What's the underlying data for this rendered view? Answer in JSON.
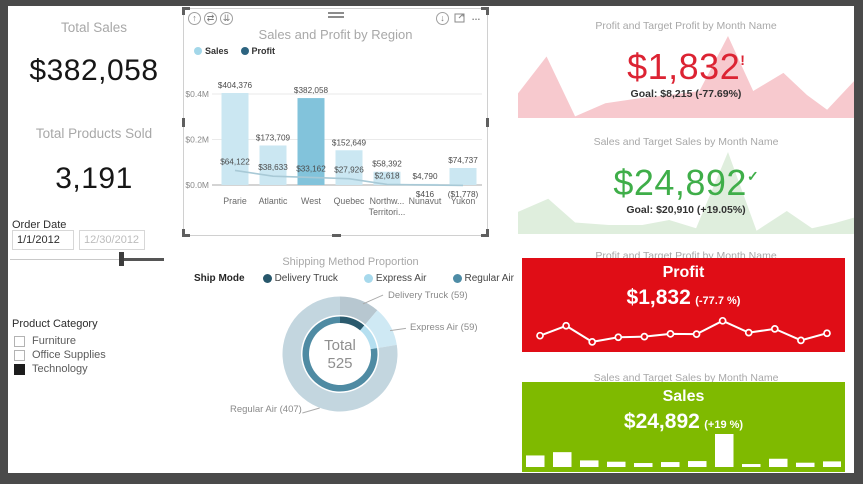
{
  "colors": {
    "frame": "#4a4a4a",
    "title_gray": "#a8a8a8",
    "kpi_red_text": "#dc2333",
    "kpi_green_text": "#3fae49",
    "pink_area": "#f7c9ce",
    "green_area": "#dfeedd",
    "card_profit_bg": "#e00d16",
    "card_sales_bg": "#7fba00",
    "bar_light": "#cbe7f2",
    "bar_highlight": "#82c3db",
    "profit_line": "#a8c9d6"
  },
  "left_panel": {
    "total_sales_label": "Total Sales",
    "total_sales_value": "$382,058",
    "total_products_label": "Total Products Sold",
    "total_products_value": "3,191",
    "order_date": {
      "label": "Order Date",
      "start_value": "1/1/2012",
      "end_value": "12/30/2012"
    },
    "product_category": {
      "label": "Product Category",
      "options": [
        {
          "label": "Furniture",
          "checked": false
        },
        {
          "label": "Office Supplies",
          "checked": false
        },
        {
          "label": "Technology",
          "checked": true
        }
      ]
    }
  },
  "region_visual": {
    "title": "Sales and Profit by Region",
    "legend": [
      {
        "label": "Sales",
        "color": "#a3d7e9"
      },
      {
        "label": "Profit",
        "color": "#2d6480"
      }
    ],
    "header_icons": {
      "drill_up": "↑",
      "drill_swap": "⇄",
      "expand_all": "⇊",
      "drill_down": "↓",
      "more_options": "…"
    }
  },
  "donut_visual": {
    "title": "Shipping Method Proportion",
    "legend_title": "Ship Mode",
    "legend": [
      {
        "label": "Delivery Truck",
        "color": "#27576b"
      },
      {
        "label": "Express Air",
        "color": "#a7d9ec"
      },
      {
        "label": "Regular Air",
        "color": "#4e8ca6"
      }
    ],
    "center_label": "Total",
    "center_value": "525",
    "callouts": {
      "delivery_truck": "Delivery Truck (59)",
      "express_air": "Express Air (59)",
      "regular_air": "Regular Air (407)"
    }
  },
  "kpi_profit": {
    "title": "Profit and Target Profit by Month Name",
    "value": "$1,832",
    "indicator": "!",
    "goal": "Goal: $8,215 (-77.69%)"
  },
  "kpi_sales": {
    "title": "Sales and Target Sales by Month Name",
    "value": "$24,892",
    "indicator": "✓",
    "goal": "Goal: $20,910 (+19.05%)"
  },
  "card_profit": {
    "title": "Profit and Target Profit by Month Name",
    "heading": "Profit",
    "value": "$1,832",
    "delta": "(-77.7 %)"
  },
  "card_sales": {
    "title": "Sales and Target Sales by Month Name",
    "heading": "Sales",
    "value": "$24,892",
    "delta": "(+19 %)"
  },
  "chart_data": [
    {
      "id": "region",
      "type": "bar",
      "title": "Sales and Profit by Region",
      "categories": [
        "Prarie",
        "Atlantic",
        "West",
        "Quebec",
        "Northw...\nTerritori...",
        "Nunavut",
        "Yukon"
      ],
      "series": [
        {
          "name": "Sales",
          "type": "bar",
          "values": [
            404376,
            173709,
            382058,
            152649,
            58392,
            4790,
            74737
          ],
          "labels": [
            "$404,376",
            "$173,709",
            "$382,058",
            "$152,649",
            "$58,392",
            "$4,790",
            "$74,737"
          ]
        },
        {
          "name": "Profit",
          "type": "line",
          "values": [
            64122,
            38633,
            33162,
            27926,
            2618,
            416,
            -1778
          ],
          "labels": [
            "$64,122",
            "$38,633",
            "$33,162",
            "$27,926",
            "$2,618",
            "$416",
            "($1,778)"
          ]
        }
      ],
      "y_ticks": [
        {
          "value": 0,
          "label": "$0.0M"
        },
        {
          "value": 200000,
          "label": "$0.2M"
        },
        {
          "value": 400000,
          "label": "$0.4M"
        }
      ],
      "ylim": [
        0,
        440000
      ],
      "highlight_index": 2,
      "grid": true,
      "legend_position": "top-left"
    },
    {
      "id": "shipping",
      "type": "pie",
      "title": "Shipping Method Proportion",
      "slices": [
        {
          "label": "Delivery Truck",
          "value": 59
        },
        {
          "label": "Express Air",
          "value": 59
        },
        {
          "label": "Regular Air",
          "value": 407
        }
      ],
      "total": 525,
      "outer_colors": [
        "#b7c7d0",
        "#cfe9f4",
        "#c3d6df"
      ],
      "inner_colors": [
        "#2b5a6d",
        "#b5dff0",
        "#4f8ba3"
      ]
    },
    {
      "id": "profit_area",
      "type": "area",
      "title": "Profit and Target Profit by Month Name",
      "points": [
        [
          0,
          0.3
        ],
        [
          0.085,
          0.75
        ],
        [
          0.17,
          0.02
        ],
        [
          0.26,
          0.18
        ],
        [
          0.36,
          0.24
        ],
        [
          0.45,
          0.28
        ],
        [
          0.54,
          0.33
        ],
        [
          0.625,
          1.0
        ],
        [
          0.7,
          0.33
        ],
        [
          0.79,
          0.55
        ],
        [
          0.86,
          0.28
        ],
        [
          0.92,
          0.1
        ],
        [
          1,
          0.45
        ]
      ],
      "color": "#f7c9ce"
    },
    {
      "id": "sales_area",
      "type": "area",
      "title": "Sales and Target Sales by Month Name",
      "points": [
        [
          0,
          0.27
        ],
        [
          0.09,
          0.43
        ],
        [
          0.17,
          0.14
        ],
        [
          0.27,
          0.11
        ],
        [
          0.37,
          0.11
        ],
        [
          0.45,
          0.17
        ],
        [
          0.53,
          0.07
        ],
        [
          0.625,
          1.0
        ],
        [
          0.71,
          0.04
        ],
        [
          0.8,
          0.28
        ],
        [
          0.875,
          0.07
        ],
        [
          0.94,
          0.13
        ],
        [
          1,
          0.2
        ]
      ],
      "color": "#dfeedd"
    },
    {
      "id": "profit_line",
      "type": "line",
      "title": "Profit by Month (sparkline)",
      "values": [
        0.3,
        0.62,
        0.1,
        0.25,
        0.27,
        0.36,
        0.35,
        0.78,
        0.4,
        0.52,
        0.15,
        0.38
      ],
      "color": "#ffffff"
    },
    {
      "id": "sales_bars",
      "type": "bar",
      "title": "Sales by Month (mini bars)",
      "values": [
        0.35,
        0.45,
        0.2,
        0.16,
        0.12,
        0.15,
        0.18,
        1.0,
        0.09,
        0.25,
        0.13,
        0.17
      ],
      "color": "#ffffff"
    }
  ]
}
